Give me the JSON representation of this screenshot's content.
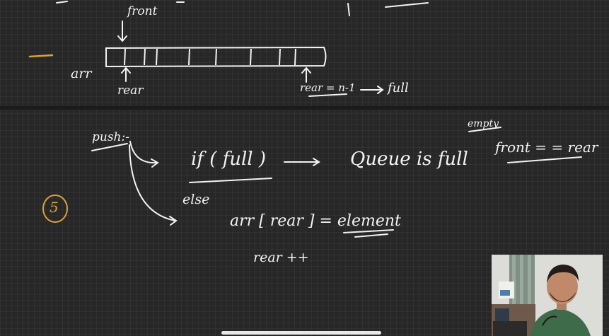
{
  "canvas": {
    "background": "#272727",
    "ink_color": "#f2f2f2",
    "accent_color": "#d8a23a"
  },
  "top_diagram": {
    "front_label": "front",
    "array_label": "arr",
    "rear_label": "rear",
    "rear_end_label": "rear = n-1",
    "full_label": "full"
  },
  "bottom_notes": {
    "step_number": "5",
    "push_label": "push:-",
    "if_condition": "if ( full )",
    "if_result": "Queue is full",
    "else_label": "else",
    "assignment": "arr [ rear ] = element",
    "increment": "rear ++",
    "empty_label": "empty",
    "empty_condition": "front = = rear"
  },
  "icons": {
    "webcam": "presenter-webcam-feed",
    "scroll": "scroll-indicator-bar"
  }
}
